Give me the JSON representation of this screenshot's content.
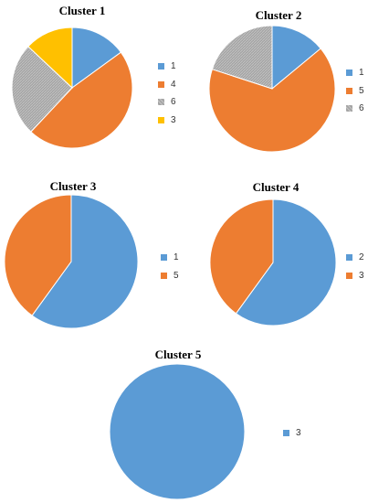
{
  "colors": {
    "1": "#5b9bd5",
    "2": "#5b9bd5",
    "3_blue": "#5b9bd5",
    "4": "#ed7d31",
    "5": "#ed7d31",
    "6": "#a5a5a5",
    "3": "#ffc000"
  },
  "chart_data": [
    {
      "type": "pie",
      "title": "Cluster 1",
      "slices": [
        {
          "label": "1",
          "value": 15,
          "color": "#5b9bd5"
        },
        {
          "label": "4",
          "value": 47,
          "color": "#ed7d31"
        },
        {
          "label": "6",
          "value": 25,
          "color": "#a5a5a5"
        },
        {
          "label": "3",
          "value": 13,
          "color": "#ffc000"
        }
      ],
      "legend": [
        "1",
        "4",
        "6",
        "3"
      ]
    },
    {
      "type": "pie",
      "title": "Cluster 2",
      "slices": [
        {
          "label": "1",
          "value": 14,
          "color": "#5b9bd5"
        },
        {
          "label": "5",
          "value": 66,
          "color": "#ed7d31"
        },
        {
          "label": "6",
          "value": 20,
          "color": "#a5a5a5"
        }
      ],
      "legend": [
        "1",
        "5",
        "6"
      ]
    },
    {
      "type": "pie",
      "title": "Cluster 3",
      "slices": [
        {
          "label": "1",
          "value": 60,
          "color": "#5b9bd5"
        },
        {
          "label": "5",
          "value": 40,
          "color": "#ed7d31"
        }
      ],
      "legend": [
        "1",
        "5"
      ]
    },
    {
      "type": "pie",
      "title": "Cluster 4",
      "slices": [
        {
          "label": "2",
          "value": 60,
          "color": "#5b9bd5"
        },
        {
          "label": "3",
          "value": 40,
          "color": "#ed7d31"
        }
      ],
      "legend": [
        "2",
        "3"
      ]
    },
    {
      "type": "pie",
      "title": "Cluster 5",
      "slices": [
        {
          "label": "3",
          "value": 100,
          "color": "#5b9bd5"
        }
      ],
      "legend": [
        "3"
      ]
    }
  ]
}
